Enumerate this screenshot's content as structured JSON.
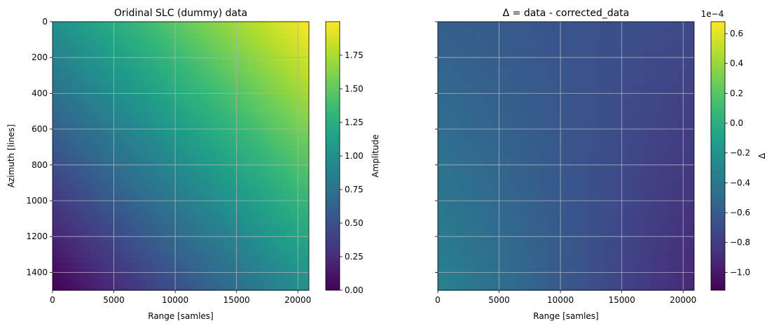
{
  "chart_data": [
    {
      "type": "heatmap",
      "title": "Oridinal SLC (dummy) data",
      "xlabel": "Range [samles]",
      "ylabel": "Azimuth [lines]",
      "xlim": [
        0,
        20900
      ],
      "ylim": [
        1500,
        0
      ],
      "xticks": [
        0,
        5000,
        10000,
        15000,
        20000
      ],
      "xtick_labels": [
        "0",
        "5000",
        "10000",
        "15000",
        "20000"
      ],
      "yticks": [
        0,
        200,
        400,
        600,
        800,
        1000,
        1200,
        1400
      ],
      "ytick_labels": [
        "0",
        "200",
        "400",
        "600",
        "800",
        "1000",
        "1200",
        "1400"
      ],
      "grid": true,
      "colormap": "viridis",
      "colorbar": {
        "label": "Amplitude",
        "range": [
          0.0,
          2.0
        ],
        "ticks": [
          0.0,
          0.25,
          0.5,
          0.75,
          1.0,
          1.25,
          1.5,
          1.75
        ],
        "tick_labels": [
          "0.00",
          "0.25",
          "0.50",
          "0.75",
          "1.00",
          "1.25",
          "1.50",
          "1.75"
        ]
      },
      "corner_values": {
        "top_left": 1.0,
        "top_right": 2.0,
        "bottom_left": 0.0,
        "bottom_right": 1.0
      }
    },
    {
      "type": "heatmap",
      "title": "Δ = data - corrected_data",
      "xlabel": "Range [samles]",
      "ylabel": "",
      "xlim": [
        0,
        20900
      ],
      "ylim": [
        1500,
        0
      ],
      "xticks": [
        0,
        5000,
        10000,
        15000,
        20000
      ],
      "xtick_labels": [
        "0",
        "5000",
        "10000",
        "15000",
        "20000"
      ],
      "yticks": [
        0,
        200,
        400,
        600,
        800,
        1000,
        1200,
        1400
      ],
      "grid": true,
      "shared_y_axis": true,
      "colormap": "viridis",
      "colorbar": {
        "label": "Δ",
        "scale_label": "1e−4",
        "range": [
          -1.12,
          0.68
        ],
        "ticks": [
          0.6,
          0.4,
          0.2,
          0.0,
          -0.2,
          -0.4,
          -0.6,
          -0.8,
          -1.0
        ],
        "tick_labels": [
          "0.6",
          "0.4",
          "0.2",
          "0.0",
          "−0.2",
          "−0.4",
          "−0.6",
          "−0.8",
          "−1.0"
        ]
      },
      "corner_values": {
        "top_left": -0.58,
        "top_right": -0.72,
        "bottom_left": -0.32,
        "bottom_right": -0.92
      }
    }
  ],
  "colors": {
    "viridis": [
      "#440154",
      "#482878",
      "#3e4989",
      "#31688e",
      "#26828e",
      "#1f9e89",
      "#35b779",
      "#6ece58",
      "#b5de2b",
      "#fde725"
    ],
    "grid": "#b0b0b0"
  }
}
